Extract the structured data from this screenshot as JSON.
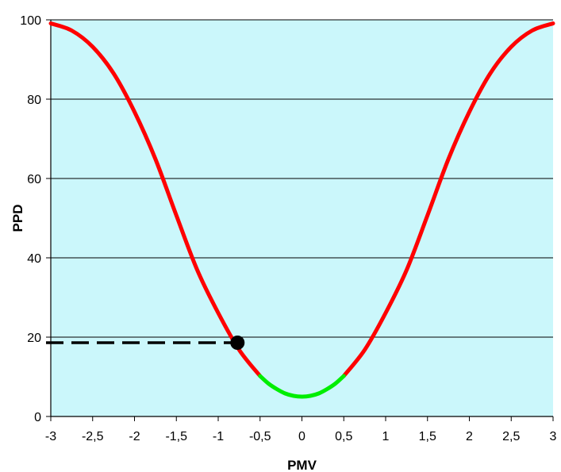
{
  "chart_data": {
    "type": "line",
    "title": "",
    "xlabel": "PMV",
    "ylabel": "PPD",
    "xlim": [
      -3,
      3
    ],
    "ylim": [
      0,
      100
    ],
    "x_ticks": [
      -3,
      -2.5,
      -2,
      -1.5,
      -1,
      -0.5,
      0,
      0.5,
      1,
      1.5,
      2,
      2.5,
      3
    ],
    "x_tick_labels": [
      "-3",
      "-2,5",
      "-2",
      "-1,5",
      "-1",
      "-0,5",
      "0",
      "0,5",
      "1",
      "1,5",
      "2",
      "2,5",
      "3"
    ],
    "y_ticks": [
      0,
      20,
      40,
      60,
      80,
      100
    ],
    "y_tick_labels": [
      "0",
      "20",
      "40",
      "60",
      "80",
      "100"
    ],
    "grid": "horizontal",
    "series": [
      {
        "color": "#ff0000",
        "segments": [
          {
            "x": [
              -3,
              -2.75,
              -2.5,
              -2.25,
              -2,
              -1.75,
              -1.5,
              -1.25,
              -1,
              -0.75,
              -0.5
            ],
            "y": [
              99.1,
              97.3,
              93.2,
              86.5,
              76.8,
              64.9,
              50.7,
              36.9,
              26.1,
              16.8,
              10.2
            ]
          },
          {
            "x": [
              0.5,
              0.75,
              1,
              1.25,
              1.5,
              1.75,
              2,
              2.25,
              2.5,
              2.75,
              3
            ],
            "y": [
              10.2,
              16.8,
              26.1,
              36.9,
              50.7,
              64.9,
              76.8,
              86.5,
              93.2,
              97.3,
              99.1
            ]
          }
        ]
      },
      {
        "color": "#00ee00",
        "segments": [
          {
            "x": [
              -0.5,
              -0.4,
              -0.3,
              -0.2,
              -0.1,
              0,
              0.1,
              0.2,
              0.3,
              0.4,
              0.5
            ],
            "y": [
              10.2,
              8.3,
              6.9,
              5.8,
              5.2,
              5.0,
              5.2,
              5.8,
              6.9,
              8.3,
              10.2
            ]
          }
        ]
      }
    ],
    "highlight_point": {
      "x": -0.77,
      "y": 18.6,
      "color": "#000000"
    },
    "reference_line": {
      "x": [
        -3,
        -0.77
      ],
      "y": 18.6,
      "style": "dashed",
      "color": "#000000"
    },
    "colors": {
      "plot_background": "#cbf7fb",
      "gridline": "#000000"
    }
  }
}
